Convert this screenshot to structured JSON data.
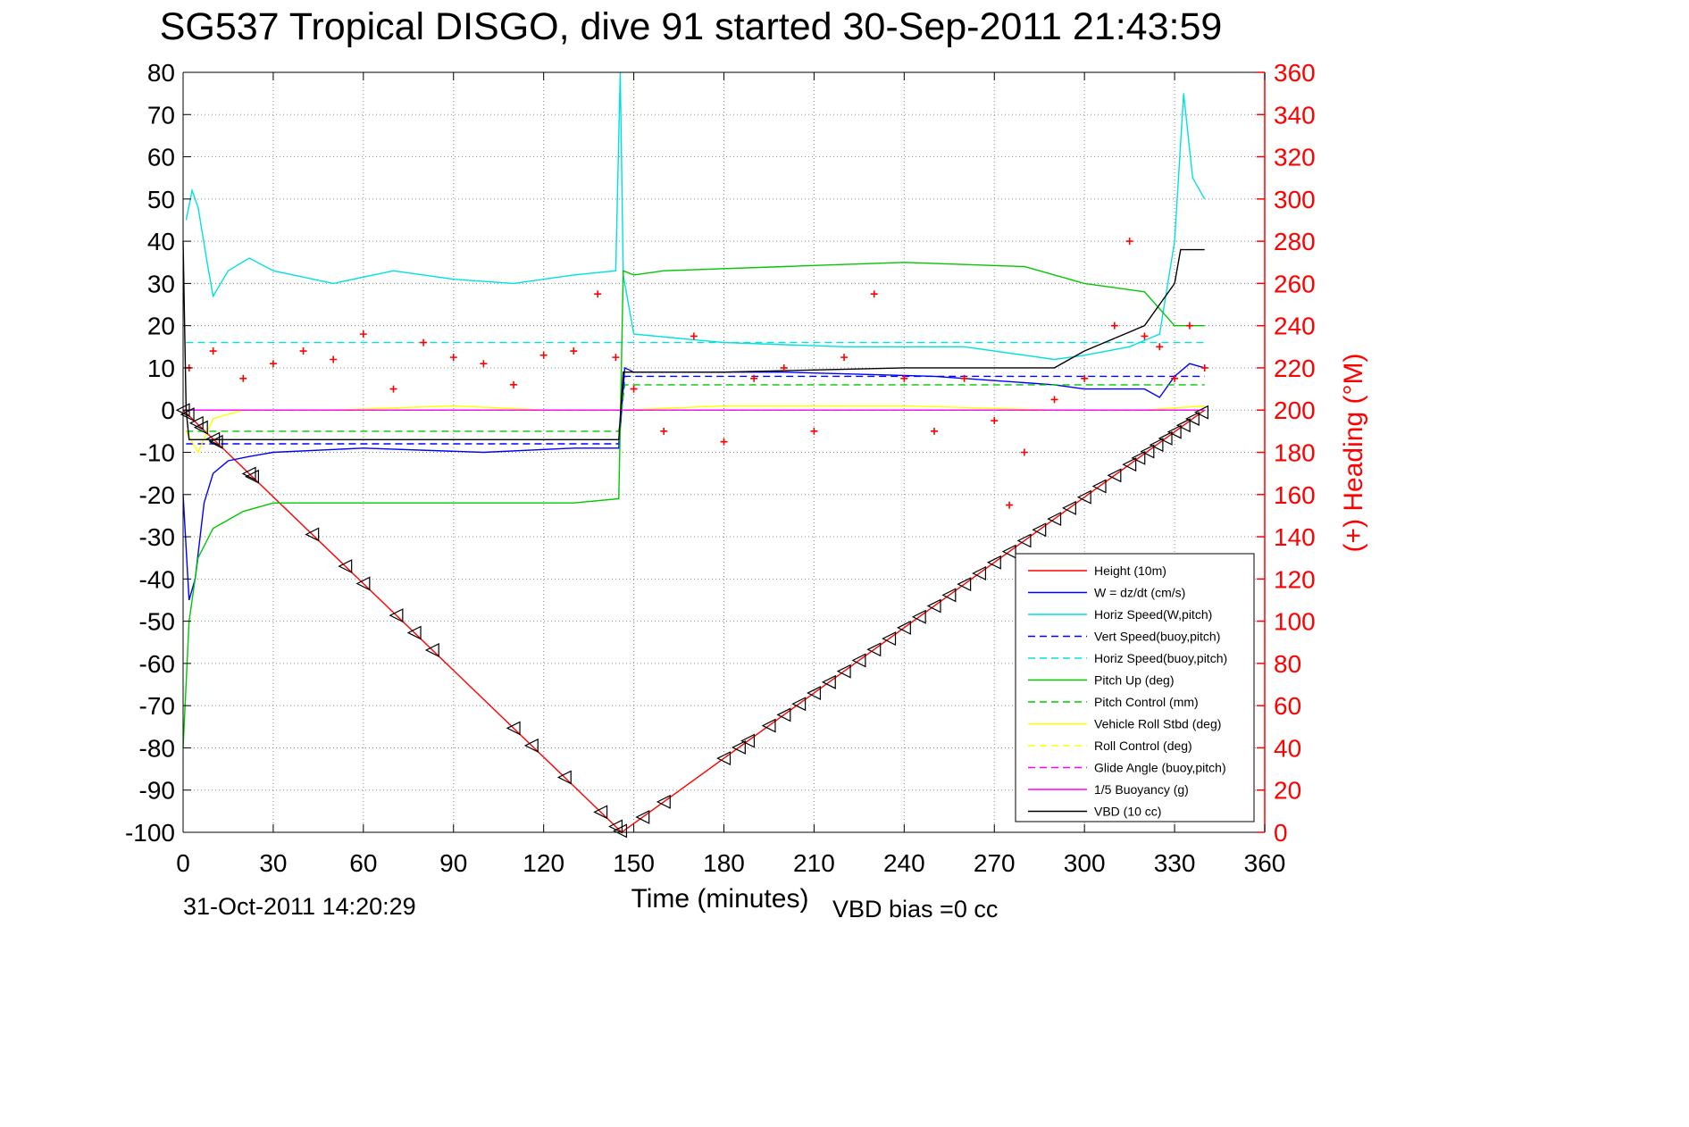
{
  "title": "SG537 Tropical DISGO, dive 91 started 30-Sep-2011 21:43:59",
  "footer": {
    "timestamp": "31-Oct-2011 14:20:29",
    "vbd_bias": "VBD bias =0 cc"
  },
  "chart_data": {
    "type": "line",
    "xlabel": "Time (minutes)",
    "ylabel": "",
    "y2label": "(+) Heading (°M)",
    "xlim": [
      0,
      360
    ],
    "ylim": [
      -100,
      80
    ],
    "y2lim": [
      0,
      360
    ],
    "xticks": [
      0,
      30,
      60,
      90,
      120,
      150,
      180,
      210,
      240,
      270,
      300,
      330,
      360
    ],
    "yticks": [
      -100,
      -90,
      -80,
      -70,
      -60,
      -50,
      -40,
      -30,
      -20,
      -10,
      0,
      10,
      20,
      30,
      40,
      50,
      60,
      70,
      80
    ],
    "y2ticks": [
      0,
      20,
      40,
      60,
      80,
      100,
      120,
      140,
      160,
      180,
      200,
      220,
      240,
      260,
      280,
      300,
      320,
      340,
      360
    ],
    "grid": true,
    "legend_position": "bottom-right",
    "colors": {
      "axis": "#000000",
      "right_axis": "#ff0000",
      "grid": "#888888"
    },
    "series": [
      {
        "name": "Height (10m)",
        "color": "#ff0000",
        "dash": "solid",
        "x": [
          0,
          146,
          340
        ],
        "y": [
          0,
          -100,
          0
        ]
      },
      {
        "name": "W = dz/dt (cm/s)",
        "color": "#0000ff",
        "dash": "solid",
        "x": [
          0,
          2,
          4,
          7,
          10,
          15,
          22,
          30,
          60,
          100,
          130,
          145,
          147,
          150,
          200,
          250,
          290,
          300,
          310,
          320,
          325,
          330,
          335,
          340
        ],
        "y": [
          -20,
          -45,
          -40,
          -22,
          -15,
          -12,
          -11,
          -10,
          -9,
          -10,
          -9,
          -9,
          10,
          9,
          9,
          8,
          6,
          5,
          5,
          5,
          3,
          8,
          11,
          10
        ]
      },
      {
        "name": "Horiz Speed(W,pitch)",
        "color": "#00e0e0",
        "dash": "solid",
        "x": [
          1,
          3,
          5,
          8,
          10,
          15,
          22,
          30,
          50,
          70,
          90,
          110,
          130,
          144,
          145.5,
          146.5,
          150,
          180,
          220,
          260,
          290,
          300,
          315,
          325,
          330,
          333,
          336,
          340
        ],
        "y": [
          45,
          52,
          48,
          35,
          27,
          33,
          36,
          33,
          30,
          33,
          31,
          30,
          32,
          33,
          80,
          32,
          18,
          16,
          15,
          15,
          12,
          13,
          15,
          18,
          40,
          75,
          55,
          50
        ]
      },
      {
        "name": "Vert Speed(buoy,pitch)",
        "color": "#0000ff",
        "dash": "dashed",
        "x": [
          1,
          145,
          147,
          340
        ],
        "y": [
          -8,
          -8,
          8,
          8
        ]
      },
      {
        "name": "Horiz Speed(buoy,pitch)",
        "color": "#00e0e0",
        "dash": "dashed",
        "x": [
          1,
          145,
          147,
          340
        ],
        "y": [
          16,
          16,
          16,
          16
        ]
      },
      {
        "name": "Pitch Up (deg)",
        "color": "#00c800",
        "dash": "solid",
        "x": [
          0,
          2,
          5,
          10,
          20,
          30,
          60,
          100,
          130,
          145,
          146.5,
          150,
          160,
          200,
          240,
          280,
          300,
          320,
          330,
          340
        ],
        "y": [
          -80,
          -50,
          -35,
          -28,
          -24,
          -22,
          -22,
          -22,
          -22,
          -21,
          33,
          32,
          33,
          34,
          35,
          34,
          30,
          28,
          20,
          20
        ]
      },
      {
        "name": "Pitch Control (mm)",
        "color": "#00c800",
        "dash": "dashed",
        "x": [
          1,
          145,
          147,
          340
        ],
        "y": [
          -5,
          -5,
          6,
          6
        ]
      },
      {
        "name": "Vehicle Roll Stbd (deg)",
        "color": "#ffff00",
        "dash": "solid",
        "x": [
          1,
          5,
          10,
          20,
          50,
          90,
          120,
          145,
          147,
          180,
          240,
          290,
          300,
          320,
          340
        ],
        "y": [
          -5,
          -10,
          -2,
          0,
          0,
          1,
          0,
          0,
          0,
          1,
          1,
          0,
          0,
          0,
          1
        ]
      },
      {
        "name": "Roll Control (deg)",
        "color": "#ffff00",
        "dash": "dashed",
        "x": [
          1,
          340
        ],
        "y": [
          0,
          0
        ]
      },
      {
        "name": "Glide Angle (buoy,pitch)",
        "color": "#ff00ff",
        "dash": "dashed",
        "x": [
          0,
          340
        ],
        "y": [
          0,
          0
        ]
      },
      {
        "name": "1/5 Buoyancy (g)",
        "color": "#ff00ff",
        "dash": "solid",
        "x": [
          0,
          340
        ],
        "y": [
          0,
          0
        ]
      },
      {
        "name": "VBD (10 cc)",
        "color": "#000000",
        "dash": "solid",
        "x": [
          0,
          1,
          2,
          145,
          146.5,
          180,
          240,
          290,
          300,
          320,
          330,
          332,
          340
        ],
        "y": [
          40,
          0,
          -7,
          -7,
          9,
          9,
          10,
          10,
          14,
          20,
          30,
          38,
          38
        ]
      }
    ],
    "heading_series": {
      "name": "(+) Heading",
      "axis": "right",
      "marker": "+",
      "color": "#ff0000",
      "x": [
        2,
        10,
        20,
        30,
        40,
        50,
        60,
        70,
        80,
        90,
        100,
        110,
        120,
        130,
        138,
        144,
        150,
        160,
        170,
        180,
        190,
        200,
        210,
        220,
        230,
        240,
        250,
        260,
        270,
        275,
        280,
        290,
        300,
        310,
        315,
        320,
        325,
        330,
        335,
        340
      ],
      "y": [
        220,
        228,
        215,
        222,
        228,
        224,
        236,
        210,
        232,
        225,
        222,
        212,
        226,
        228,
        255,
        225,
        210,
        190,
        235,
        185,
        215,
        220,
        190,
        225,
        255,
        215,
        190,
        215,
        195,
        155,
        180,
        205,
        215,
        240,
        280,
        235,
        230,
        215,
        240,
        220
      ]
    },
    "markers": {
      "name": "Height samples",
      "shape": "triangle",
      "color": "#000000",
      "x": [
        0,
        1.5,
        4.5,
        6,
        10,
        11,
        22,
        23,
        43,
        54,
        60,
        71,
        77,
        83,
        110,
        116,
        127,
        139,
        144,
        145.5,
        153,
        160,
        180,
        185,
        188,
        195,
        200,
        205,
        210,
        215,
        220,
        225,
        230,
        235,
        240,
        245,
        250,
        255,
        260,
        265,
        270,
        275,
        280,
        285,
        290,
        295,
        300,
        305,
        310,
        315,
        318,
        321,
        324,
        327,
        330,
        333,
        336,
        339
      ]
    }
  },
  "legend": {
    "items": [
      {
        "label": "Height (10m)",
        "color": "#ff0000",
        "dash": "solid"
      },
      {
        "label": "W = dz/dt (cm/s)",
        "color": "#0000ff",
        "dash": "solid"
      },
      {
        "label": "Horiz Speed(W,pitch)",
        "color": "#00e0e0",
        "dash": "solid"
      },
      {
        "label": "Vert Speed(buoy,pitch)",
        "color": "#0000ff",
        "dash": "dashed"
      },
      {
        "label": "Horiz Speed(buoy,pitch)",
        "color": "#00e0e0",
        "dash": "dashed"
      },
      {
        "label": "Pitch Up (deg)",
        "color": "#00c800",
        "dash": "solid"
      },
      {
        "label": "Pitch Control (mm)",
        "color": "#00c800",
        "dash": "dashed"
      },
      {
        "label": "Vehicle Roll Stbd (deg)",
        "color": "#ffff00",
        "dash": "solid"
      },
      {
        "label": "Roll Control (deg)",
        "color": "#ffff00",
        "dash": "dashed"
      },
      {
        "label": "Glide Angle (buoy,pitch)",
        "color": "#ff00ff",
        "dash": "dashed"
      },
      {
        "label": "1/5 Buoyancy (g)",
        "color": "#ff00ff",
        "dash": "solid"
      },
      {
        "label": "VBD (10 cc)",
        "color": "#000000",
        "dash": "solid"
      }
    ]
  }
}
